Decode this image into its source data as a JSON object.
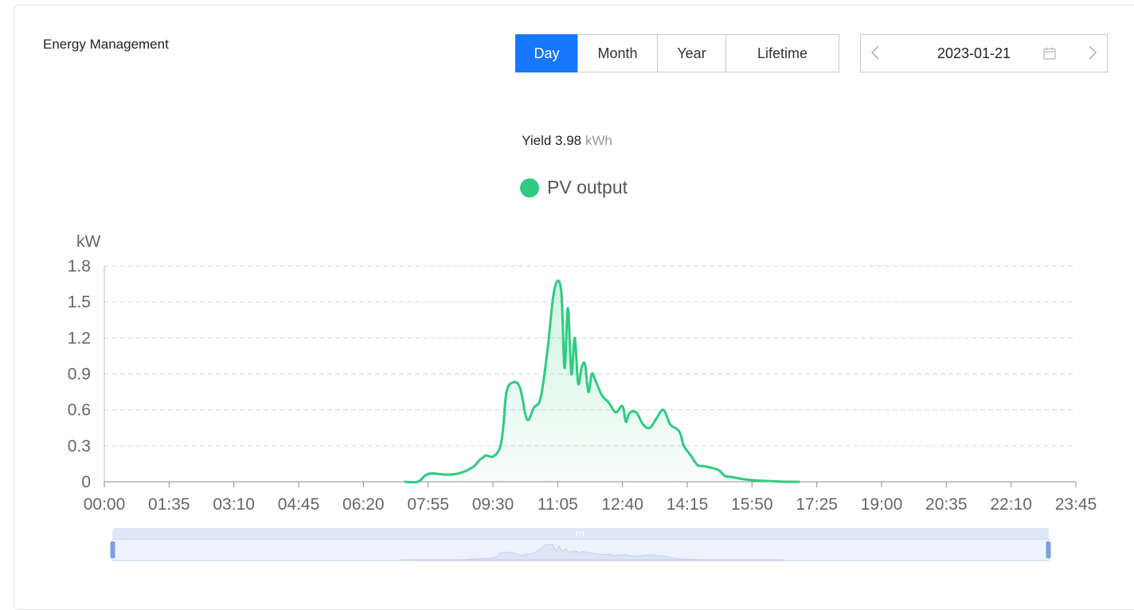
{
  "header": {
    "title": "Energy Management"
  },
  "tabs": [
    {
      "label": "Day",
      "active": true
    },
    {
      "label": "Month",
      "active": false
    },
    {
      "label": "Year",
      "active": false
    },
    {
      "label": "Lifetime",
      "active": false
    }
  ],
  "date_picker": {
    "value": "2023-01-21",
    "prev_icon": "chevron-left-icon",
    "next_icon": "chevron-right-icon",
    "calendar_icon": "calendar-icon"
  },
  "summary": {
    "label": "Yield",
    "value": "3.98",
    "unit": "kWh"
  },
  "colors": {
    "accent": "#1677ff",
    "series": "#2ecc80"
  },
  "chart_data": {
    "type": "area",
    "ylabel": "kW",
    "ylim": [
      0,
      1.8
    ],
    "yticks": [
      "0",
      "0.3",
      "0.6",
      "0.9",
      "1.2",
      "1.5",
      "1.8"
    ],
    "xlim": [
      "00:00",
      "23:45"
    ],
    "xticks": [
      "00:00",
      "01:35",
      "03:10",
      "04:45",
      "06:20",
      "07:55",
      "09:30",
      "11:05",
      "12:40",
      "14:15",
      "15:50",
      "17:25",
      "19:00",
      "20:35",
      "22:10",
      "23:45"
    ],
    "grid": "horizontal dashed",
    "legend_position": "top-center",
    "series": [
      {
        "name": "PV output",
        "x": [
          "07:20",
          "07:40",
          "07:50",
          "08:00",
          "08:20",
          "08:40",
          "09:00",
          "09:10",
          "09:15",
          "09:20",
          "09:30",
          "09:40",
          "09:45",
          "09:50",
          "10:00",
          "10:10",
          "10:20",
          "10:30",
          "10:40",
          "10:50",
          "11:00",
          "11:10",
          "11:15",
          "11:20",
          "11:25",
          "11:30",
          "11:35",
          "11:40",
          "11:45",
          "11:50",
          "11:55",
          "12:00",
          "12:10",
          "12:20",
          "12:30",
          "12:40",
          "12:45",
          "12:50",
          "13:00",
          "13:10",
          "13:20",
          "13:30",
          "13:40",
          "13:50",
          "14:00",
          "14:05",
          "14:10",
          "14:20",
          "14:30",
          "14:40",
          "15:00",
          "15:10",
          "15:20",
          "15:40",
          "16:00",
          "16:20",
          "16:40",
          "17:00"
        ],
        "y": [
          0,
          0,
          0.05,
          0.07,
          0.06,
          0.07,
          0.12,
          0.18,
          0.2,
          0.22,
          0.21,
          0.28,
          0.45,
          0.75,
          0.83,
          0.78,
          0.52,
          0.62,
          0.7,
          1.1,
          1.6,
          1.6,
          0.95,
          1.45,
          0.9,
          1.2,
          0.82,
          0.95,
          0.98,
          0.75,
          0.9,
          0.85,
          0.72,
          0.66,
          0.58,
          0.63,
          0.5,
          0.57,
          0.58,
          0.48,
          0.45,
          0.53,
          0.6,
          0.48,
          0.44,
          0.4,
          0.3,
          0.22,
          0.14,
          0.13,
          0.1,
          0.05,
          0.04,
          0.02,
          0.01,
          0.005,
          0,
          0
        ]
      }
    ]
  }
}
